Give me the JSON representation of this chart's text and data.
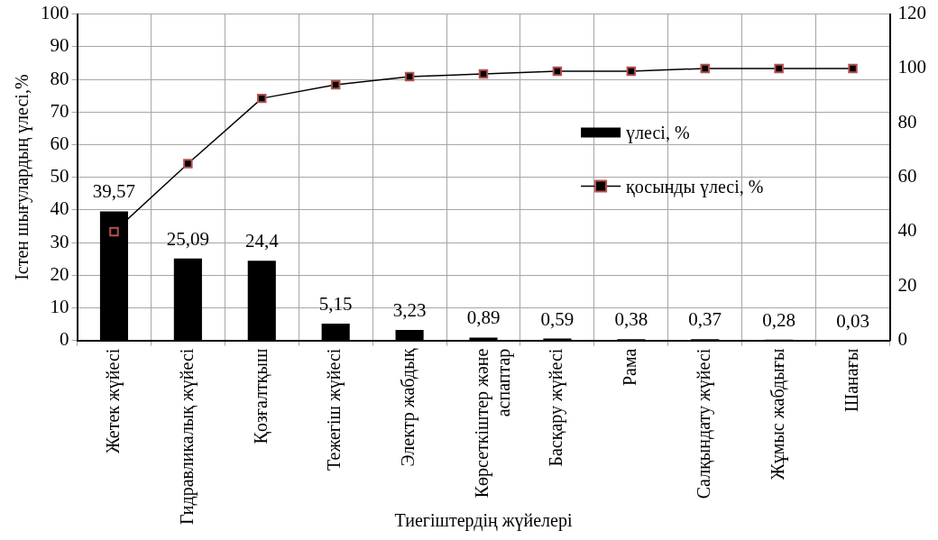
{
  "chart_data": {
    "type": "bar",
    "xlabel": "Тиегіштердің жүйелері",
    "ylabel": "Істен шығулардың үлесі,%",
    "categories": [
      "Жетек жүйесі",
      "Гидравликалық жүйесі",
      "Қозғалтқыш",
      "Тежегіш жүйесі",
      "Электр жабдық",
      "Көрсеткіштер және аспаптар",
      "Басқару жүйесі",
      "Рама",
      "Салқындату жүйесі",
      "Жұмыс жабдығы",
      "Шанағы"
    ],
    "series": [
      {
        "name": "үлесі, %",
        "color": "#000000",
        "values": [
          39.57,
          25.09,
          24.4,
          5.15,
          3.23,
          0.89,
          0.59,
          0.38,
          0.37,
          0.28,
          0.03
        ],
        "value_labels": [
          "39,57",
          "25,09",
          "24,4",
          "5,15",
          "3,23",
          "0,89",
          "0,59",
          "0,38",
          "0,37",
          "0,28",
          "0,03"
        ]
      },
      {
        "name": "қосынды үлесі, %",
        "type": "line",
        "axis": "y2",
        "color": "#000000",
        "values": [
          40,
          65,
          89,
          94,
          97,
          98,
          99,
          99,
          100,
          100,
          100
        ]
      }
    ],
    "ylim": [
      0,
      100
    ],
    "yticks": [
      0,
      10,
      20,
      30,
      40,
      50,
      60,
      70,
      80,
      90,
      100
    ],
    "y2lim": [
      0,
      120
    ],
    "y2ticks": [
      0,
      20,
      40,
      60,
      80,
      100,
      120
    ],
    "grid": true,
    "legend": "right",
    "marker": "square"
  }
}
